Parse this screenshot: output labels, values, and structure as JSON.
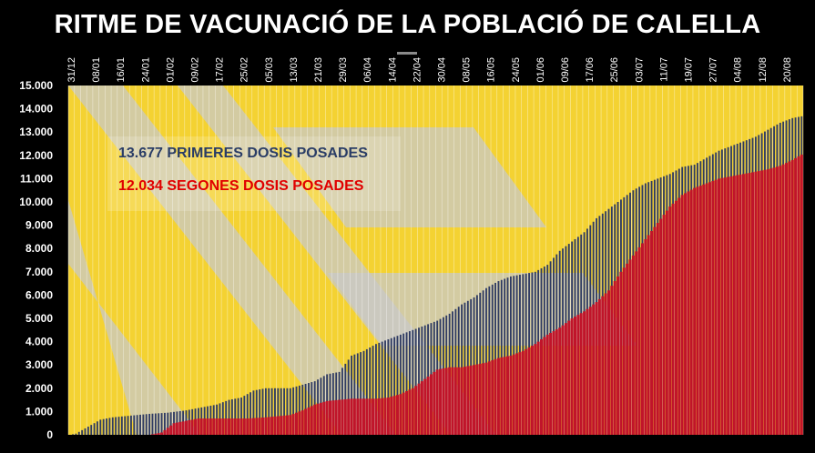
{
  "title": "RITME DE VACUNACIÓ DE LA POBLACIÓ DE CALELLA",
  "legend": {
    "first": "13.677 PRIMERES DOSIS POSADES",
    "second": "12.034 SEGONES DOSIS POSADES"
  },
  "colors": {
    "background": "#000000",
    "plot_yellow": "#f4d232",
    "plot_gray": "#c8c8c8",
    "first_dose": "#2f3b63",
    "second_dose": "#c0142a",
    "legend_first_text": "#2a3d66",
    "legend_second_text": "#e00000"
  },
  "chart_data": {
    "type": "bar",
    "title": "RITME DE VACUNACIÓ DE LA POBLACIÓ DE CALELLA",
    "ylim": [
      0,
      15000
    ],
    "y_ticks": [
      "0",
      "1.000",
      "2.000",
      "3.000",
      "4.000",
      "5.000",
      "6.000",
      "7.000",
      "8.000",
      "9.000",
      "10.000",
      "11.000",
      "12.000",
      "13.000",
      "14.000",
      "15.000"
    ],
    "x_tick_labels": [
      "31/12",
      "08/01",
      "16/01",
      "24/01",
      "01/02",
      "09/02",
      "17/02",
      "25/02",
      "05/03",
      "13/03",
      "21/03",
      "29/03",
      "06/04",
      "14/04",
      "22/04",
      "30/04",
      "08/05",
      "16/05",
      "24/05",
      "01/06",
      "09/06",
      "17/06",
      "25/06",
      "03/07",
      "11/07",
      "19/07",
      "27/07",
      "04/08",
      "12/08",
      "20/08"
    ],
    "grid": "vertical",
    "series": [
      {
        "name": "PRIMERES DOSIS",
        "color": "#2f3b63",
        "points": [
          [
            0,
            0
          ],
          [
            2,
            50
          ],
          [
            6,
            350
          ],
          [
            10,
            650
          ],
          [
            14,
            750
          ],
          [
            18,
            800
          ],
          [
            22,
            850
          ],
          [
            26,
            900
          ],
          [
            32,
            950
          ],
          [
            38,
            1050
          ],
          [
            44,
            1200
          ],
          [
            48,
            1300
          ],
          [
            52,
            1500
          ],
          [
            56,
            1600
          ],
          [
            60,
            1900
          ],
          [
            64,
            2000
          ],
          [
            68,
            2000
          ],
          [
            72,
            2000
          ],
          [
            76,
            2150
          ],
          [
            80,
            2300
          ],
          [
            84,
            2600
          ],
          [
            88,
            2700
          ],
          [
            92,
            3400
          ],
          [
            96,
            3600
          ],
          [
            100,
            3900
          ],
          [
            104,
            4100
          ],
          [
            108,
            4300
          ],
          [
            112,
            4500
          ],
          [
            116,
            4700
          ],
          [
            120,
            4900
          ],
          [
            124,
            5200
          ],
          [
            128,
            5600
          ],
          [
            132,
            5900
          ],
          [
            136,
            6300
          ],
          [
            140,
            6600
          ],
          [
            144,
            6800
          ],
          [
            148,
            6900
          ],
          [
            152,
            7000
          ],
          [
            156,
            7300
          ],
          [
            160,
            7900
          ],
          [
            164,
            8300
          ],
          [
            168,
            8700
          ],
          [
            172,
            9300
          ],
          [
            176,
            9700
          ],
          [
            180,
            10100
          ],
          [
            184,
            10500
          ],
          [
            188,
            10800
          ],
          [
            192,
            11000
          ],
          [
            196,
            11200
          ],
          [
            200,
            11500
          ],
          [
            204,
            11600
          ],
          [
            208,
            11900
          ],
          [
            212,
            12200
          ],
          [
            216,
            12400
          ],
          [
            220,
            12600
          ],
          [
            224,
            12800
          ],
          [
            228,
            13100
          ],
          [
            232,
            13400
          ],
          [
            236,
            13600
          ],
          [
            239,
            13677
          ]
        ]
      },
      {
        "name": "SEGONES DOSIS",
        "color": "#c0142a",
        "points": [
          [
            0,
            0
          ],
          [
            26,
            0
          ],
          [
            30,
            100
          ],
          [
            34,
            500
          ],
          [
            38,
            600
          ],
          [
            42,
            700
          ],
          [
            46,
            700
          ],
          [
            52,
            700
          ],
          [
            58,
            700
          ],
          [
            64,
            750
          ],
          [
            68,
            800
          ],
          [
            72,
            850
          ],
          [
            76,
            1050
          ],
          [
            80,
            1300
          ],
          [
            84,
            1450
          ],
          [
            88,
            1500
          ],
          [
            92,
            1550
          ],
          [
            96,
            1550
          ],
          [
            100,
            1550
          ],
          [
            104,
            1600
          ],
          [
            108,
            1750
          ],
          [
            112,
            2000
          ],
          [
            116,
            2400
          ],
          [
            120,
            2800
          ],
          [
            124,
            2900
          ],
          [
            128,
            2900
          ],
          [
            132,
            3000
          ],
          [
            136,
            3100
          ],
          [
            140,
            3300
          ],
          [
            144,
            3400
          ],
          [
            148,
            3600
          ],
          [
            152,
            3900
          ],
          [
            156,
            4300
          ],
          [
            160,
            4600
          ],
          [
            164,
            5000
          ],
          [
            168,
            5300
          ],
          [
            172,
            5700
          ],
          [
            176,
            6200
          ],
          [
            180,
            7000
          ],
          [
            184,
            7700
          ],
          [
            188,
            8400
          ],
          [
            192,
            9100
          ],
          [
            196,
            9800
          ],
          [
            200,
            10300
          ],
          [
            204,
            10600
          ],
          [
            208,
            10800
          ],
          [
            212,
            11000
          ],
          [
            216,
            11100
          ],
          [
            220,
            11200
          ],
          [
            224,
            11300
          ],
          [
            228,
            11400
          ],
          [
            232,
            11550
          ],
          [
            236,
            11800
          ],
          [
            239,
            12034
          ]
        ]
      }
    ]
  }
}
